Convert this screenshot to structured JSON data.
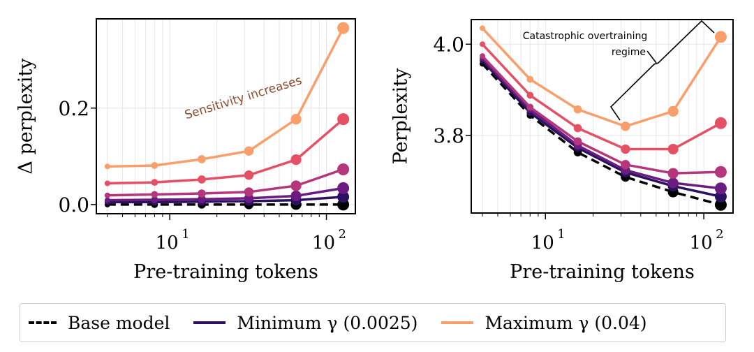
{
  "chart_data": [
    {
      "type": "line",
      "xscale": "log",
      "xlim": [
        3.4,
        153
      ],
      "ylim": [
        -0.019,
        0.385
      ],
      "xlabel": "Pre-training tokens",
      "ylabel": "Δ perplexity",
      "xticks": [
        {
          "value": 10,
          "label": "10",
          "exp": "1"
        },
        {
          "value": 100,
          "label": "10",
          "exp": "2"
        }
      ],
      "yticks": [
        {
          "value": 0.0,
          "label": "0.0"
        },
        {
          "value": 0.2,
          "label": "0.2"
        }
      ],
      "grid": true,
      "annotation": {
        "text": "Sensitivity increases",
        "color": "#8b4a2b"
      },
      "x": [
        4,
        8,
        16,
        32,
        64,
        128
      ],
      "series": [
        {
          "name": "Base model",
          "color": "#000000",
          "dashed": true,
          "values": [
            0,
            0,
            0,
            0,
            0,
            0
          ]
        },
        {
          "color": "#2d1160",
          "values": [
            0.005,
            0.005,
            0.006,
            0.007,
            0.009,
            0.016
          ]
        },
        {
          "color": "#6a1c81",
          "values": [
            0.009,
            0.01,
            0.011,
            0.013,
            0.018,
            0.034
          ]
        },
        {
          "color": "#b5367a",
          "values": [
            0.019,
            0.021,
            0.023,
            0.026,
            0.039,
            0.073
          ]
        },
        {
          "color": "#e55064",
          "values": [
            0.044,
            0.046,
            0.052,
            0.061,
            0.093,
            0.177
          ]
        },
        {
          "name": "Maximum γ (0.04)",
          "color": "#fa9e6a",
          "values": [
            0.079,
            0.081,
            0.094,
            0.111,
            0.177,
            0.366
          ]
        }
      ]
    },
    {
      "type": "line",
      "xscale": "log",
      "xlim": [
        3.4,
        153
      ],
      "ylim": [
        3.63,
        4.054
      ],
      "xlabel": "Pre-training tokens",
      "ylabel": "Perplexity",
      "xticks": [
        {
          "value": 10,
          "label": "10",
          "exp": "1"
        },
        {
          "value": 100,
          "label": "10",
          "exp": "2"
        }
      ],
      "yticks": [
        {
          "value": 3.8,
          "label": "3.8"
        },
        {
          "value": 4.0,
          "label": "4.0"
        }
      ],
      "grid": true,
      "annotation": {
        "text_line1": "Catastrophic overtraining",
        "text_line2": "regime",
        "color": "#000000"
      },
      "x": [
        4,
        8,
        16,
        32,
        64,
        128
      ],
      "series": [
        {
          "name": "Base model",
          "color": "#000000",
          "dashed": true,
          "values": [
            3.957,
            3.844,
            3.763,
            3.709,
            3.676,
            3.648
          ]
        },
        {
          "color": "#2d1160",
          "values": [
            3.964,
            3.85,
            3.773,
            3.719,
            3.689,
            3.666
          ]
        },
        {
          "color": "#6a1c81",
          "values": [
            3.969,
            3.857,
            3.778,
            3.724,
            3.696,
            3.684
          ]
        },
        {
          "color": "#b5367a",
          "values": [
            3.974,
            3.862,
            3.787,
            3.736,
            3.717,
            3.72
          ]
        },
        {
          "color": "#e55064",
          "values": [
            4.0,
            3.888,
            3.816,
            3.77,
            3.77,
            3.827
          ]
        },
        {
          "name": "Maximum γ (0.04)",
          "color": "#fa9e6a",
          "values": [
            4.035,
            3.923,
            3.857,
            3.82,
            3.853,
            4.016
          ]
        }
      ]
    }
  ],
  "legend": {
    "placement": "bottom",
    "items": [
      {
        "label": "Base model",
        "color": "#000000",
        "dashed": true
      },
      {
        "label": "Minimum γ (0.0025)",
        "color": "#2d1160"
      },
      {
        "label": "Maximum γ (0.04)",
        "color": "#fa9e6a"
      }
    ]
  }
}
